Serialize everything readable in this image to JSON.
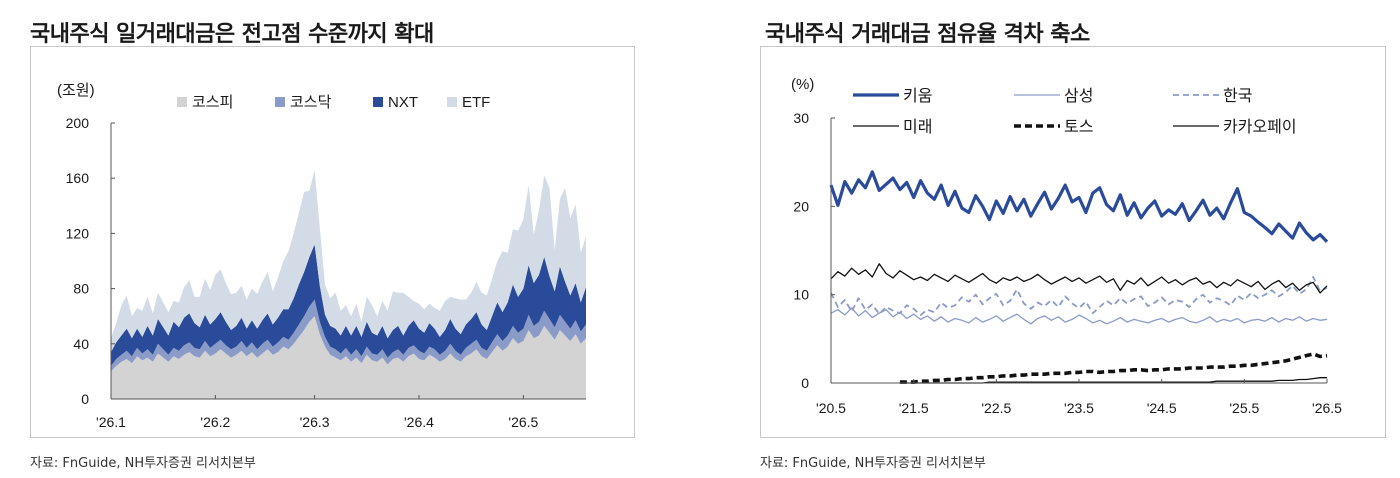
{
  "left": {
    "title": "국내주식 일거래대금은 전고점 수준까지 확대",
    "source": "자료: FnGuide, NH투자증권 리서치본부",
    "chart_data": {
      "type": "area",
      "stacked": true,
      "unit_label": "(조원)",
      "ylim": [
        0,
        200
      ],
      "yticks": [
        "0",
        "40",
        "80",
        "120",
        "160",
        "200"
      ],
      "xticks": [
        "'26.1",
        "'26.2",
        "'26.3",
        "'26.4",
        "'26.5"
      ],
      "xtick_pos": [
        0,
        20,
        39,
        59,
        79
      ],
      "n_points": 92,
      "legend_position": "top",
      "series": [
        {
          "name": "코스피",
          "color": "#d3d3d3",
          "values": [
            20,
            24,
            27,
            29,
            26,
            31,
            28,
            30,
            27,
            33,
            30,
            27,
            31,
            29,
            32,
            34,
            31,
            30,
            35,
            31,
            33,
            36,
            33,
            30,
            32,
            35,
            31,
            34,
            30,
            33,
            36,
            32,
            34,
            38,
            36,
            40,
            45,
            50,
            56,
            60,
            47,
            38,
            32,
            30,
            28,
            31,
            27,
            30,
            26,
            32,
            28,
            27,
            30,
            25,
            29,
            30,
            27,
            31,
            33,
            29,
            28,
            32,
            30,
            27,
            29,
            33,
            29,
            27,
            31,
            33,
            36,
            31,
            29,
            34,
            39,
            35,
            38,
            44,
            40,
            42,
            50,
            44,
            46,
            53,
            48,
            43,
            50,
            46,
            42,
            47,
            40,
            44
          ]
        },
        {
          "name": "코스닥",
          "color": "#8b9bc8",
          "values": [
            4,
            5,
            5,
            6,
            5,
            6,
            5,
            6,
            5,
            7,
            6,
            5,
            6,
            6,
            7,
            7,
            6,
            6,
            7,
            6,
            7,
            7,
            6,
            6,
            6,
            7,
            6,
            7,
            6,
            7,
            7,
            6,
            7,
            7,
            7,
            8,
            9,
            10,
            11,
            12,
            9,
            7,
            6,
            6,
            5,
            6,
            5,
            6,
            5,
            6,
            5,
            5,
            6,
            5,
            5,
            6,
            5,
            6,
            6,
            6,
            5,
            6,
            6,
            5,
            6,
            7,
            6,
            5,
            6,
            7,
            7,
            6,
            6,
            7,
            8,
            7,
            8,
            9,
            8,
            9,
            11,
            9,
            10,
            11,
            10,
            9,
            11,
            10,
            9,
            10,
            9,
            10
          ]
        },
        {
          "name": "NXT",
          "color": "#2a4a9a",
          "values": [
            10,
            12,
            14,
            16,
            13,
            14,
            12,
            17,
            14,
            18,
            16,
            14,
            19,
            17,
            20,
            21,
            18,
            16,
            19,
            17,
            18,
            20,
            17,
            14,
            15,
            17,
            14,
            16,
            15,
            17,
            19,
            16,
            18,
            20,
            22,
            25,
            29,
            32,
            36,
            40,
            26,
            16,
            15,
            15,
            13,
            16,
            14,
            17,
            14,
            18,
            15,
            14,
            17,
            14,
            16,
            17,
            14,
            16,
            18,
            16,
            15,
            17,
            15,
            13,
            15,
            18,
            16,
            15,
            17,
            18,
            20,
            17,
            15,
            19,
            23,
            21,
            24,
            30,
            26,
            29,
            36,
            31,
            34,
            39,
            31,
            26,
            35,
            29,
            24,
            27,
            21,
            27
          ]
        },
        {
          "name": "ETF",
          "color": "#d3dce6",
          "values": [
            10,
            14,
            22,
            24,
            16,
            15,
            19,
            21,
            16,
            19,
            18,
            17,
            15,
            18,
            22,
            24,
            19,
            22,
            26,
            25,
            32,
            31,
            28,
            26,
            24,
            23,
            21,
            23,
            25,
            28,
            30,
            24,
            29,
            35,
            42,
            47,
            52,
            58,
            48,
            54,
            42,
            22,
            20,
            26,
            18,
            15,
            14,
            16,
            11,
            18,
            20,
            14,
            18,
            20,
            28,
            24,
            31,
            21,
            14,
            18,
            17,
            14,
            15,
            19,
            21,
            16,
            22,
            25,
            18,
            19,
            22,
            23,
            25,
            27,
            30,
            44,
            36,
            40,
            48,
            50,
            58,
            35,
            47,
            59,
            64,
            30,
            49,
            68,
            56,
            57,
            36,
            37
          ]
        }
      ]
    }
  },
  "right": {
    "title": "국내주식 거래대금 점유율 격차 축소",
    "source": "자료: FnGuide, NH투자증권 리서치본부",
    "chart_data": {
      "type": "line",
      "unit_label": "(%)",
      "ylim": [
        0,
        30
      ],
      "yticks": [
        "0",
        "10",
        "20",
        "30"
      ],
      "xticks": [
        "'20.5",
        "'21.5",
        "'22.5",
        "'23.5",
        "'24.5",
        "'25.5",
        "'26.5"
      ],
      "n_points": 73,
      "legend_position": "top",
      "series": [
        {
          "name": "키움",
          "color": "#2a4a9a",
          "style": "thick",
          "values": [
            22.4,
            20.1,
            22.8,
            21.5,
            23.0,
            22.1,
            23.9,
            21.8,
            22.5,
            23.2,
            21.9,
            22.7,
            21.0,
            22.9,
            21.5,
            20.8,
            22.4,
            20.1,
            21.7,
            19.8,
            19.3,
            21.2,
            20.0,
            18.5,
            20.6,
            19.2,
            21.1,
            19.5,
            20.8,
            18.9,
            20.3,
            21.6,
            19.7,
            20.9,
            22.4,
            20.5,
            21.0,
            19.3,
            21.5,
            22.1,
            20.2,
            19.5,
            21.3,
            19.0,
            20.4,
            18.7,
            19.8,
            20.6,
            18.9,
            19.6,
            19.1,
            20.3,
            18.4,
            19.5,
            20.7,
            19.0,
            19.8,
            18.6,
            20.4,
            22.0,
            19.3,
            18.9,
            18.2,
            17.6,
            16.9,
            18.0,
            17.2,
            16.4,
            18.1,
            17.0,
            16.2,
            16.8,
            16.0
          ]
        },
        {
          "name": "삼성",
          "color": "#8b9bc8",
          "style": "thin",
          "values": [
            7.9,
            8.3,
            7.7,
            8.5,
            7.6,
            8.2,
            7.4,
            7.9,
            8.3,
            7.5,
            8.0,
            7.3,
            7.8,
            7.2,
            7.6,
            7.0,
            7.5,
            6.9,
            7.3,
            7.1,
            6.8,
            7.4,
            6.9,
            7.2,
            7.6,
            7.0,
            7.4,
            7.8,
            7.2,
            6.7,
            7.3,
            7.6,
            7.1,
            7.5,
            6.9,
            7.2,
            7.7,
            7.3,
            6.8,
            7.1,
            6.7,
            7.0,
            7.4,
            6.9,
            7.2,
            7.0,
            6.8,
            7.1,
            7.3,
            6.9,
            7.2,
            7.4,
            7.0,
            6.8,
            7.1,
            7.5,
            6.9,
            7.2,
            7.0,
            7.3,
            6.8,
            7.1,
            7.2,
            7.0,
            7.4,
            6.9,
            7.3,
            7.1,
            7.5,
            7.0,
            7.3,
            7.1,
            7.2
          ]
        },
        {
          "name": "한국",
          "color": "#8b9bc8",
          "style": "dashed",
          "values": [
            10.2,
            8.6,
            9.4,
            8.1,
            9.6,
            8.3,
            8.9,
            7.8,
            8.6,
            8.2,
            7.9,
            8.8,
            8.4,
            7.7,
            8.3,
            8.0,
            9.1,
            8.5,
            8.8,
            9.7,
            9.2,
            10.0,
            8.9,
            9.6,
            10.1,
            8.8,
            9.3,
            10.6,
            9.0,
            8.4,
            9.1,
            8.7,
            9.4,
            8.6,
            9.8,
            9.0,
            8.5,
            9.2,
            7.9,
            8.6,
            9.3,
            8.8,
            9.6,
            9.0,
            9.5,
            9.8,
            8.7,
            9.1,
            9.7,
            8.9,
            9.4,
            9.2,
            8.6,
            9.5,
            10.0,
            9.1,
            9.6,
            9.3,
            8.8,
            9.9,
            9.4,
            10.2,
            9.6,
            10.0,
            10.5,
            9.8,
            10.3,
            11.0,
            10.1,
            10.6,
            12.0,
            10.4,
            10.8
          ]
        },
        {
          "name": "미래",
          "color": "#111111",
          "style": "thin",
          "values": [
            11.8,
            12.6,
            12.1,
            13.0,
            12.3,
            12.8,
            12.0,
            13.5,
            12.4,
            11.9,
            12.7,
            12.2,
            11.7,
            12.0,
            11.6,
            12.3,
            11.9,
            11.5,
            12.2,
            11.8,
            11.4,
            11.9,
            12.4,
            11.7,
            11.3,
            11.9,
            11.6,
            12.0,
            11.5,
            11.8,
            12.3,
            11.7,
            11.2,
            11.6,
            12.0,
            11.5,
            11.9,
            11.3,
            11.7,
            12.1,
            11.4,
            11.8,
            10.5,
            11.6,
            11.2,
            11.9,
            11.0,
            11.5,
            12.0,
            11.3,
            11.7,
            11.1,
            11.6,
            11.9,
            11.2,
            11.5,
            10.8,
            11.4,
            11.0,
            11.7,
            11.3,
            10.9,
            11.5,
            10.6,
            11.2,
            11.6,
            10.8,
            11.3,
            10.5,
            11.1,
            11.4,
            10.2,
            11.0
          ]
        },
        {
          "name": "토스",
          "color": "#111111",
          "style": "thickdash",
          "values": [
            null,
            null,
            null,
            null,
            null,
            null,
            null,
            null,
            null,
            null,
            0.1,
            0.1,
            0.1,
            0.2,
            0.2,
            0.3,
            0.3,
            0.4,
            0.4,
            0.5,
            0.5,
            0.6,
            0.6,
            0.7,
            0.7,
            0.8,
            0.8,
            0.9,
            0.9,
            1.0,
            1.0,
            1.0,
            1.1,
            1.1,
            1.1,
            1.2,
            1.2,
            1.3,
            1.3,
            1.2,
            1.3,
            1.3,
            1.4,
            1.4,
            1.5,
            1.5,
            1.4,
            1.5,
            1.5,
            1.6,
            1.6,
            1.6,
            1.7,
            1.7,
            1.7,
            1.8,
            1.8,
            1.8,
            1.9,
            1.9,
            2.0,
            2.0,
            2.1,
            2.2,
            2.3,
            2.4,
            2.5,
            2.7,
            2.9,
            3.1,
            3.3,
            3.0,
            3.1
          ]
        },
        {
          "name": "카카오페이",
          "color": "#111111",
          "style": "thin",
          "values": [
            null,
            null,
            null,
            null,
            null,
            null,
            null,
            null,
            null,
            null,
            0.0,
            0.0,
            0.0,
            0.0,
            0.0,
            0.0,
            0.0,
            0.0,
            0.0,
            0.0,
            0.0,
            0.0,
            0.0,
            0.1,
            0.1,
            0.1,
            0.1,
            0.1,
            0.1,
            0.1,
            0.1,
            0.1,
            0.1,
            0.1,
            0.1,
            0.1,
            0.1,
            0.1,
            0.1,
            0.1,
            0.1,
            0.1,
            0.1,
            0.1,
            0.1,
            0.1,
            0.1,
            0.1,
            0.1,
            0.1,
            0.1,
            0.1,
            0.1,
            0.1,
            0.1,
            0.1,
            0.2,
            0.2,
            0.2,
            0.2,
            0.2,
            0.2,
            0.2,
            0.2,
            0.2,
            0.3,
            0.3,
            0.3,
            0.4,
            0.4,
            0.5,
            0.6,
            0.6
          ]
        }
      ]
    }
  }
}
